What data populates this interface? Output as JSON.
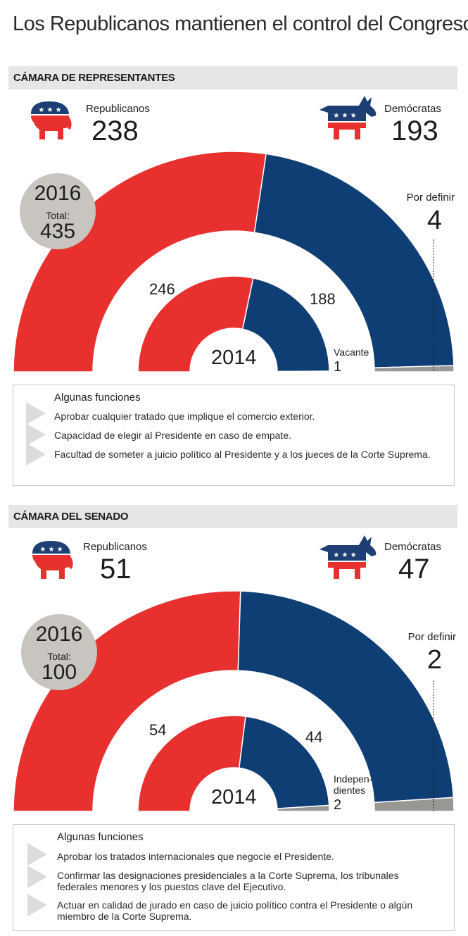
{
  "title": "Los Republicanos mantienen el control del Congreso",
  "colors": {
    "republican": "#e8312f",
    "democrat": "#0f3e74",
    "pending": "#999794",
    "circle": "#c8c5c0"
  },
  "icons": {
    "republican": "elephant-icon",
    "democrat": "donkey-icon"
  },
  "house": {
    "heading": "CÁMARA DE REPRESENTANTES",
    "rep_label": "Republicanos",
    "rep_value": "238",
    "dem_label": "Demócratas",
    "dem_value": "193",
    "circle_year": "2016",
    "circle_total_label": "Total:",
    "circle_total": "435",
    "pending_label": "Por definir",
    "pending_value": "4",
    "inner_rep": "246",
    "inner_dem": "188",
    "inner_year": "2014",
    "inner_other_label": "Vacante",
    "inner_other_value": "1",
    "functions_title": "Algunas funciones",
    "functions": [
      "Aprobar cualquier tratado que implique el comercio exterior.",
      "Capacidad de elegir al Presidente en caso de empate.",
      "Facultad de someter a juicio político al Presidente y a los jueces de la Corte Suprema."
    ]
  },
  "senate": {
    "heading": "CÁMARA DEL SENADO",
    "rep_label": "Republicanos",
    "rep_value": "51",
    "dem_label": "Demócratas",
    "dem_value": "47",
    "circle_year": "2016",
    "circle_total_label": "Total:",
    "circle_total": "100",
    "pending_label": "Por definir",
    "pending_value": "2",
    "inner_rep": "54",
    "inner_dem": "44",
    "inner_year": "2014",
    "inner_other_label_1": "Indepen-",
    "inner_other_label_2": "dientes",
    "inner_other_value": "2",
    "functions_title": "Algunas funciones",
    "functions": [
      "Aprobar los tratados internacionales que negocie el Presidente.",
      "Confirmar las designaciones presidenciales a la Corte Suprema, los tribunales",
      "federales menores y los puestos clave del Ejecutivo.",
      "Actuar en calidad de jurado en caso de juicio político contra el Presidente o algún",
      "miembro de la Corte Suprema."
    ]
  },
  "chart_data": [
    {
      "type": "pie",
      "subtype": "semicircle",
      "title": "CÁMARA DE REPRESENTANTES",
      "series": [
        {
          "name": "2016",
          "labels": [
            "Republicanos",
            "Demócratas",
            "Por definir"
          ],
          "values": [
            238,
            193,
            4
          ],
          "total": 435
        },
        {
          "name": "2014",
          "labels": [
            "Republicanos",
            "Demócratas",
            "Vacante"
          ],
          "values": [
            246,
            188,
            1
          ]
        }
      ]
    },
    {
      "type": "pie",
      "subtype": "semicircle",
      "title": "CÁMARA DEL SENADO",
      "series": [
        {
          "name": "2016",
          "labels": [
            "Republicanos",
            "Demócratas",
            "Por definir"
          ],
          "values": [
            51,
            47,
            2
          ],
          "total": 100
        },
        {
          "name": "2014",
          "labels": [
            "Republicanos",
            "Demócratas",
            "Independientes"
          ],
          "values": [
            54,
            44,
            2
          ]
        }
      ]
    }
  ]
}
